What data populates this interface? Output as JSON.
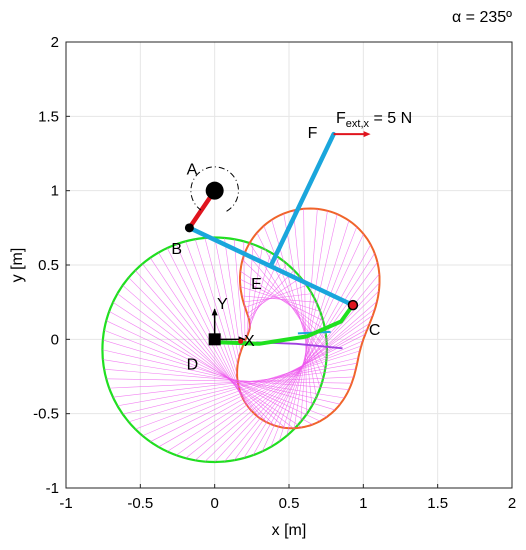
{
  "chart_data": {
    "type": "line",
    "title": "",
    "xlabel": "x [m]",
    "ylabel": "y [m]",
    "xlim": [
      -1,
      2
    ],
    "ylim": [
      -1,
      2
    ],
    "xticks": [
      -1,
      -0.5,
      0,
      0.5,
      1,
      1.5,
      2
    ],
    "yticks": [
      -1,
      -0.5,
      0,
      0.5,
      1,
      1.5,
      2
    ],
    "xtick_labels": [
      "-1",
      "-0.5",
      "0",
      "0.5",
      "1",
      "1.5",
      "2"
    ],
    "ytick_labels": [
      "-1",
      "-0.5",
      "0",
      "0.5",
      "1",
      "1.5",
      "2"
    ],
    "grid": true,
    "angle_label": "α = 235º",
    "force_label_main": "F",
    "force_label_sub": "ext,x",
    "force_label_value": " = 5 N",
    "points": [
      {
        "name": "A",
        "x": 0.0,
        "y": 1.0
      },
      {
        "name": "B",
        "x": -0.17,
        "y": 0.75
      },
      {
        "name": "C",
        "x": 0.93,
        "y": 0.23
      },
      {
        "name": "D",
        "x": 0.0,
        "y": 0.0
      },
      {
        "name": "E",
        "x": 0.38,
        "y": 0.5
      },
      {
        "name": "F",
        "x": 0.8,
        "y": 1.38
      }
    ],
    "frame_labels": {
      "x_axis": "X",
      "y_axis": "Y"
    },
    "colors": {
      "crank": "#e0141e",
      "links": "#1aa6dc",
      "green_curve": "#1fe01f",
      "orange_curve": "#f0642a",
      "magenta": "#ee55ee",
      "purple": "#a040e0",
      "force_arrow": "#e0141e",
      "joint": "#000000"
    }
  }
}
